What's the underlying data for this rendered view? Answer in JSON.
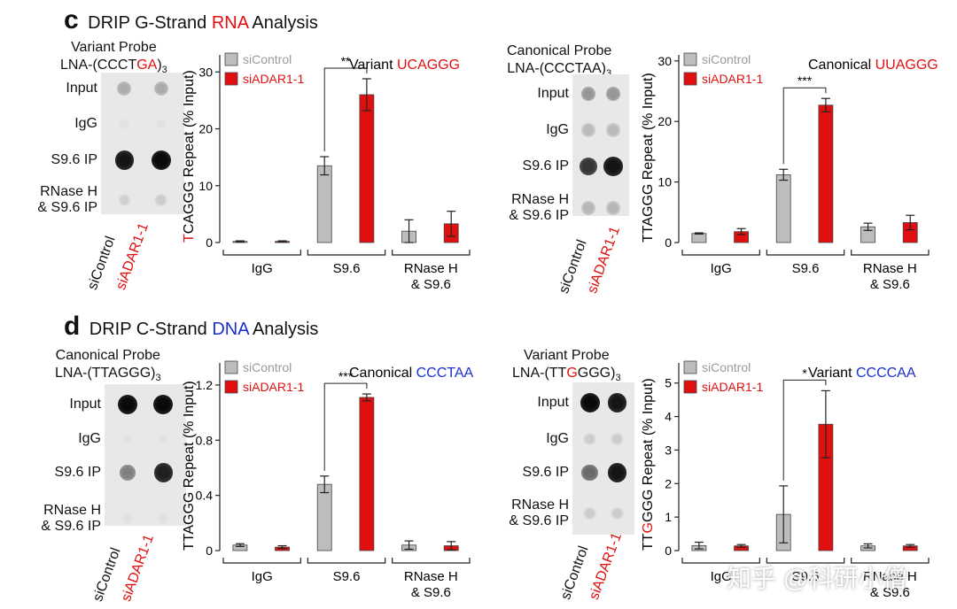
{
  "panel_c": {
    "letter": "c",
    "title_pre": "DRIP G-Strand ",
    "title_hl": "RNA",
    "title_post": " Analysis"
  },
  "panel_d": {
    "letter": "d",
    "title_pre": "DRIP C-Strand ",
    "title_hl": "DNA",
    "title_post": " Analysis"
  },
  "blots": [
    {
      "probe_line1": "Variant Probe",
      "probe_pre": "LNA-(CCCT",
      "probe_hl": "GA",
      "probe_post": ")",
      "sub": "3",
      "rows": [
        "Input",
        "IgG",
        "S9.6 IP",
        "RNase H\n& S9.6 IP"
      ],
      "lanes": [
        "siControl",
        "siADAR1-1"
      ],
      "intensity": [
        [
          0.25,
          0.25
        ],
        [
          0,
          0
        ],
        [
          0.95,
          1.0
        ],
        [
          0.08,
          0.1
        ]
      ]
    },
    {
      "probe_line1": "Canonical Probe",
      "probe_pre": "LNA-(CCCTAA)",
      "probe_hl": "",
      "probe_post": "",
      "sub": "3",
      "rows": [
        "Input",
        "IgG",
        "S9.6 IP",
        "RNase H\n& S9.6 IP"
      ],
      "lanes": [
        "siControl",
        "siADAR1-1"
      ],
      "intensity": [
        [
          0.35,
          0.35
        ],
        [
          0.18,
          0.18
        ],
        [
          0.8,
          0.95
        ],
        [
          0.2,
          0.2
        ]
      ]
    },
    {
      "probe_line1": "Canonical Probe",
      "probe_pre": "LNA-(TTAGGG)",
      "probe_hl": "",
      "probe_post": "",
      "sub": "3",
      "rows": [
        "Input",
        "IgG",
        "S9.6 IP",
        "RNase H\n& S9.6 IP"
      ],
      "lanes": [
        "siControl",
        "siADAR1-1"
      ],
      "intensity": [
        [
          1.0,
          1.0
        ],
        [
          0,
          0
        ],
        [
          0.45,
          0.9
        ],
        [
          0,
          0
        ]
      ]
    },
    {
      "probe_line1": "Variant Probe",
      "probe_pre": "LNA-(TT",
      "probe_hl": "G",
      "probe_post": "GGG)",
      "sub": "3",
      "rows": [
        "Input",
        "IgG",
        "S9.6 IP",
        "RNase H\n& S9.6 IP"
      ],
      "lanes": [
        "siControl",
        "siADAR1-1"
      ],
      "intensity": [
        [
          1.0,
          0.95
        ],
        [
          0.1,
          0.1
        ],
        [
          0.55,
          0.95
        ],
        [
          0.1,
          0.1
        ]
      ]
    }
  ],
  "chart_data": [
    {
      "type": "bar",
      "categories": [
        "IgG",
        "S9.6",
        "RNase H\n& S9.6"
      ],
      "ylabel_hl": "T",
      "ylabel_rest": "CAGGG Repeat (% Input)",
      "ylabel_prefix": "",
      "ylim": [
        0,
        33
      ],
      "yticks": [
        0,
        10,
        20,
        30
      ],
      "legend": [
        "siControl",
        "siADAR1-1"
      ],
      "note_pre": "Variant ",
      "note_hl": "UCAGGG",
      "note_color": "#e01010",
      "series": [
        {
          "name": "siControl",
          "values": [
            0.2,
            13.5,
            2.0
          ],
          "err": [
            0.1,
            1.6,
            2.0
          ]
        },
        {
          "name": "siADAR1-1",
          "values": [
            0.2,
            26,
            3.3
          ],
          "err": [
            0.1,
            2.8,
            2.2
          ]
        }
      ],
      "sig": {
        "group": 1,
        "label": "**"
      }
    },
    {
      "type": "bar",
      "categories": [
        "IgG",
        "S9.6",
        "RNase H\n& S9.6"
      ],
      "ylabel_hl": "",
      "ylabel_rest": "TTAGGG Repeat (% Input)",
      "ylabel_prefix": "",
      "ylim": [
        0,
        31
      ],
      "yticks": [
        0,
        10,
        20,
        30
      ],
      "legend": [
        "siControl",
        "siADAR1-1"
      ],
      "note_pre": "Canonical ",
      "note_hl": "UUAGGG",
      "note_color": "#e01010",
      "series": [
        {
          "name": "siControl",
          "values": [
            1.5,
            11.2,
            2.6
          ],
          "err": [
            0.1,
            0.9,
            0.6
          ]
        },
        {
          "name": "siADAR1-1",
          "values": [
            1.8,
            22.7,
            3.3
          ],
          "err": [
            0.5,
            1.1,
            1.2
          ]
        }
      ],
      "sig": {
        "group": 1,
        "label": "***"
      }
    },
    {
      "type": "bar",
      "categories": [
        "IgG",
        "S9.6",
        "RNase H\n& S9.6"
      ],
      "ylabel_hl": "",
      "ylabel_rest": "TTAGGG Repeat (% Input)",
      "ylabel_prefix": "",
      "ylim": [
        0,
        1.36
      ],
      "yticks": [
        0,
        0.4,
        0.8,
        1.2
      ],
      "legend": [
        "siControl",
        "siADAR1-1"
      ],
      "note_pre": "Canonical ",
      "note_hl": "CCCTAA",
      "note_color": "#1a2fd0",
      "series": [
        {
          "name": "siControl",
          "values": [
            0.04,
            0.48,
            0.04
          ],
          "err": [
            0.01,
            0.06,
            0.03
          ]
        },
        {
          "name": "siADAR1-1",
          "values": [
            0.025,
            1.11,
            0.035
          ],
          "err": [
            0.01,
            0.025,
            0.03
          ]
        }
      ],
      "sig": {
        "group": 1,
        "label": "***"
      }
    },
    {
      "type": "bar",
      "categories": [
        "IgG",
        "S9.6",
        "RNase H\n& S9.6"
      ],
      "ylabel_hl": "G",
      "ylabel_rest": "GGG Repeat (% Input)",
      "ylabel_prefix": "TT",
      "ylim": [
        0,
        5.6
      ],
      "yticks": [
        0,
        1,
        2,
        3,
        4,
        5
      ],
      "legend": [
        "siControl",
        "siADAR1-1"
      ],
      "note_pre": "Variant ",
      "note_hl": "CCCCAA",
      "note_color": "#1a2fd0",
      "series": [
        {
          "name": "siControl",
          "values": [
            0.15,
            1.08,
            0.14
          ],
          "err": [
            0.1,
            0.85,
            0.06
          ]
        },
        {
          "name": "siADAR1-1",
          "values": [
            0.14,
            3.77,
            0.14
          ],
          "err": [
            0.04,
            1.0,
            0.04
          ]
        }
      ],
      "sig": {
        "group": 1,
        "label": "*"
      }
    }
  ],
  "watermark": "知乎 @科研小僧",
  "colors": {
    "control": "#bdbdbd",
    "adar": "#e01010",
    "red": "#e01010",
    "blue": "#1a2fd0"
  }
}
